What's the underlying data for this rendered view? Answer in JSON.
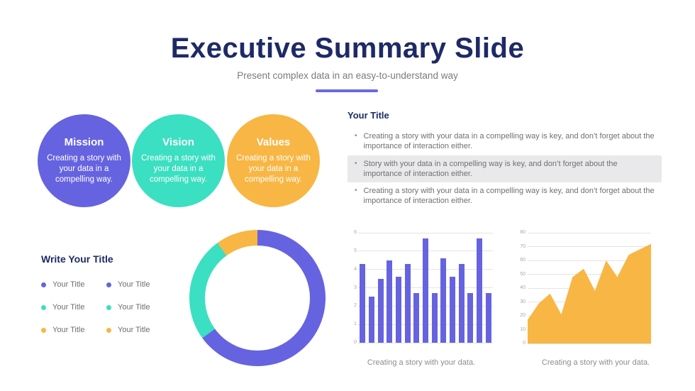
{
  "slide": {
    "title": "Executive Summary Slide",
    "subtitle": "Present complex data in an easy-to-understand way"
  },
  "colors": {
    "navy": "#1D2A66",
    "purple": "#6663E0",
    "teal": "#3BDFC1",
    "orange": "#F8B644",
    "body_text": "#6F6F6F",
    "highlight_background": "#E9E9EB",
    "underline_accent": "#6B66E6"
  },
  "pillars": [
    {
      "title": "Mission",
      "description": "Creating a story with your data in a compelling way.",
      "color": "#6663E0"
    },
    {
      "title": "Vision",
      "description": "Creating a story with your data in a compelling way.",
      "color": "#3BDFC1"
    },
    {
      "title": "Values",
      "description": "Creating a story with your data in a compelling way.",
      "color": "#F8B644"
    }
  ],
  "bullets_section": {
    "heading": "Your Title",
    "items": [
      {
        "text": "Creating a story with your data in a compelling way is key, and don’t forget about the importance of interaction either.",
        "highlighted": false
      },
      {
        "text": "Story with your data in a compelling way is key, and don’t forget about the importance of interaction either.",
        "highlighted": true
      },
      {
        "text": "Creating a story with your data in a compelling way is key, and don’t forget about the importance of interaction either.",
        "highlighted": false
      }
    ]
  },
  "legend_section": {
    "heading": "Write Your Title",
    "items": [
      {
        "label": "Your Title",
        "color": "#6663E0"
      },
      {
        "label": "Your Title",
        "color": "#6663E0"
      },
      {
        "label": "Your Title",
        "color": "#3BDFC1"
      },
      {
        "label": "Your Title",
        "color": "#3BDFC1"
      },
      {
        "label": "Your Title",
        "color": "#F8B644"
      },
      {
        "label": "Your Title",
        "color": "#F8B644"
      }
    ]
  },
  "chart_data": [
    {
      "type": "pie",
      "donut": true,
      "title": "Write Your Title",
      "legend_position": "left",
      "slices": [
        {
          "label": "Your Title",
          "value": 65,
          "color": "#6663E0"
        },
        {
          "label": "Your Title",
          "value": 25,
          "color": "#3BDFC1"
        },
        {
          "label": "Your Title",
          "value": 10,
          "color": "#F8B644"
        }
      ]
    },
    {
      "type": "bar",
      "values": [
        4.3,
        2.5,
        3.5,
        4.5,
        3.6,
        4.3,
        2.7,
        5.7,
        2.7,
        4.6,
        3.6,
        4.3,
        2.7,
        5.7,
        2.7
      ],
      "ylim": [
        0,
        6
      ],
      "yticks": [
        0,
        1,
        2,
        3,
        4,
        5,
        6
      ],
      "grid": true,
      "color": "#6663E0",
      "caption": "Creating a story with your data."
    },
    {
      "type": "area",
      "values": [
        17,
        29,
        36,
        21,
        48,
        54,
        38,
        60,
        48,
        64,
        68,
        72
      ],
      "ylim": [
        0,
        80
      ],
      "yticks": [
        0,
        10,
        20,
        30,
        40,
        50,
        60,
        70,
        80
      ],
      "grid": true,
      "color": "#F8B644",
      "caption": "Creating a story with your data."
    }
  ]
}
